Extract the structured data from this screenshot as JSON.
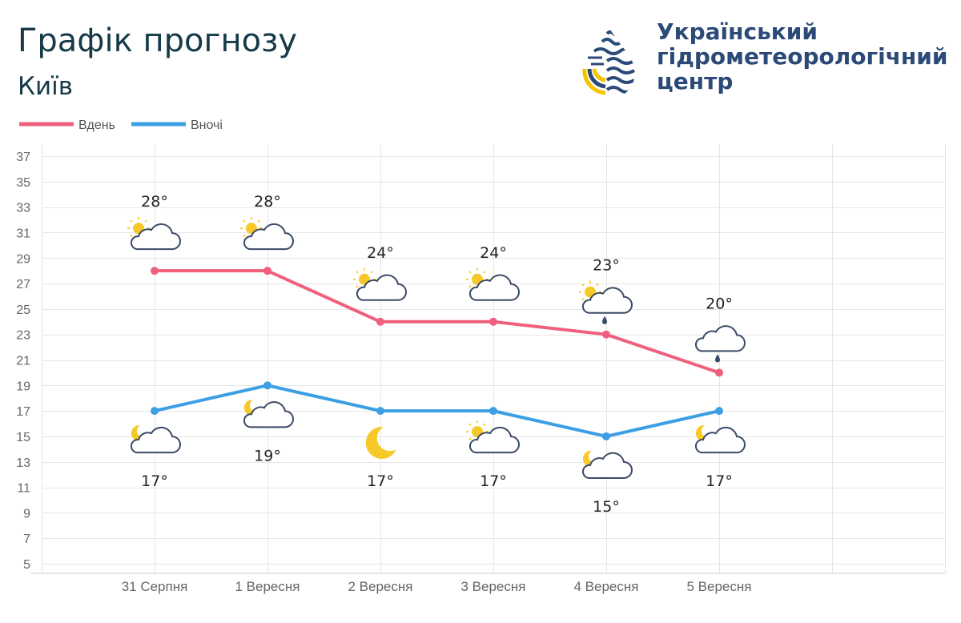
{
  "header": {
    "title": "Графік прогнозу",
    "city": "Київ"
  },
  "org": {
    "line1": "Український",
    "line2": "гідрометеорологічний",
    "line3": "центр"
  },
  "chart_data": {
    "type": "line",
    "categories": [
      "31 Серпня",
      "1 Вересня",
      "2 Вересня",
      "3 Вересня",
      "4 Вересня",
      "5 Вересня"
    ],
    "series": [
      {
        "name": "Вдень",
        "color": "#f0607e",
        "values": [
          28,
          28,
          24,
          24,
          23,
          20
        ],
        "labels": [
          "28°",
          "28°",
          "24°",
          "24°",
          "23°",
          "20°"
        ],
        "icons": [
          "cloud-sun-icon",
          "cloud-sun-icon",
          "cloud-sun-icon",
          "cloud-sun-icon",
          "cloud-sun-rain-icon",
          "cloud-rain-icon"
        ]
      },
      {
        "name": "Вночі",
        "color": "#3d9fe3",
        "values": [
          17,
          19,
          17,
          17,
          15,
          17
        ],
        "labels": [
          "17°",
          "19°",
          "17°",
          "17°",
          "15°",
          "17°"
        ],
        "icons": [
          "cloud-moon-icon",
          "cloud-moon-icon",
          "moon-icon",
          "cloud-sun-icon",
          "cloud-moon-icon",
          "cloud-moon-icon"
        ]
      }
    ],
    "ylim": [
      5,
      37
    ],
    "yticks": [
      "5",
      "7",
      "9",
      "11",
      "13",
      "15",
      "17",
      "19",
      "21",
      "23",
      "25",
      "27",
      "29",
      "31",
      "33",
      "35",
      "37"
    ],
    "legend_position": "top-left",
    "grid": true
  }
}
